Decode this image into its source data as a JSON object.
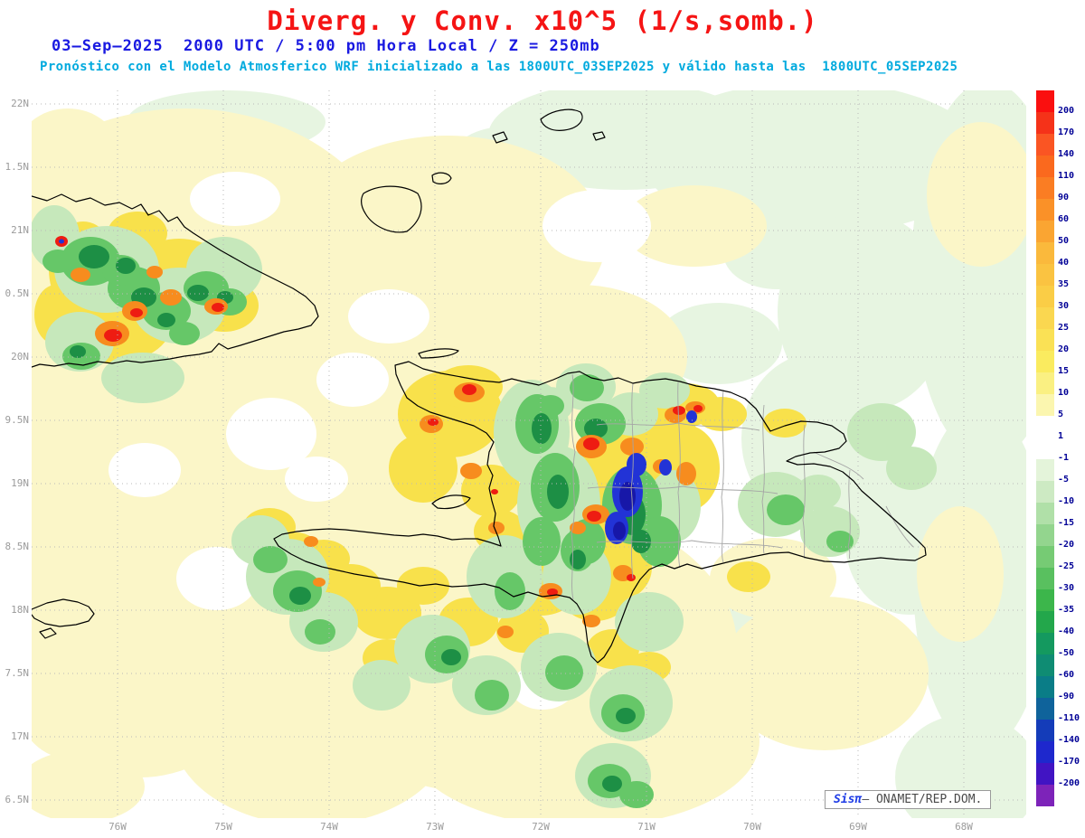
{
  "title": "Diverg. y Conv. x10^5 (1/s,somb.)",
  "datetime_line": "03–Sep–2025  2000 UTC / 5:00 pm Hora Local / Z = 250mb",
  "model_line": "Pronóstico con el Modelo Atmosferico WRF inicializado a las 1800UTC_03SEP2025 y válido hasta las  1800UTC_05SEP2025",
  "axes": {
    "lat_labels": [
      "22N",
      "1.5N",
      "21N",
      "0.5N",
      "20N",
      "9.5N",
      "19N",
      "8.5N",
      "18N",
      "7.5N",
      "17N",
      "6.5N"
    ],
    "lon_labels": [
      "76W",
      "75W",
      "74W",
      "73W",
      "72W",
      "71W",
      "70W",
      "69W",
      "68W"
    ]
  },
  "colorbar": {
    "labels": [
      200,
      170,
      140,
      110,
      90,
      60,
      50,
      40,
      35,
      30,
      25,
      20,
      15,
      10,
      5,
      1,
      -1,
      -5,
      -10,
      -15,
      -20,
      -25,
      -30,
      -35,
      -40,
      -50,
      -60,
      -90,
      -110,
      -140,
      -170,
      -200
    ],
    "colors": [
      "#fa0f0f",
      "#f53219",
      "#fa5523",
      "#fa691e",
      "#fa7d23",
      "#fa9128",
      "#faa532",
      "#fab93c",
      "#fac341",
      "#facd46",
      "#fad750",
      "#fae155",
      "#faeb5f",
      "#faf082",
      "#fbf6af",
      "#ffffff",
      "#ffffff",
      "#e4f4da",
      "#cdeac3",
      "#b0e0a8",
      "#93d58e",
      "#76cb74",
      "#59c05f",
      "#3cb64b",
      "#23a74b",
      "#14995f",
      "#0f8c73",
      "#0a7d87",
      "#0f639b",
      "#143cb9",
      "#1e28cd",
      "#4114c3",
      "#7d23b9"
    ]
  },
  "credit": {
    "brand": "Sisπ",
    "text": "– ONAMET/REP.DOM."
  },
  "colors": {
    "title": "#f51414",
    "datetime": "#1919e1",
    "model": "#00aade",
    "axis_labels": "#9b9b9b",
    "colorbar_text": "#000096"
  }
}
